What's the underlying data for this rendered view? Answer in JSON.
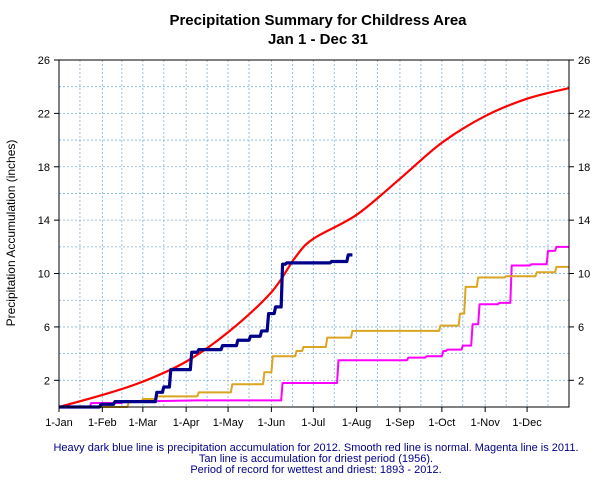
{
  "chart_data": {
    "type": "line",
    "title": "Precipitation Summary for Childress Area",
    "subtitle": "Jan 1 - Dec 31",
    "xlabel": "",
    "ylabel": "Precipitation Accumulation (inches)",
    "x_unit": "day of year",
    "xlim": [
      1,
      366
    ],
    "ylim": [
      0,
      26
    ],
    "y_ticks": [
      2,
      6,
      10,
      14,
      18,
      22,
      26
    ],
    "x_tick_labels": [
      {
        "day": 1,
        "label": "1-Jan"
      },
      {
        "day": 32,
        "label": "1-Feb"
      },
      {
        "day": 61,
        "label": "1-Mar"
      },
      {
        "day": 92,
        "label": "1-Apr"
      },
      {
        "day": 122,
        "label": "1-May"
      },
      {
        "day": 153,
        "label": "1-Jun"
      },
      {
        "day": 183,
        "label": "1-Jul"
      },
      {
        "day": 214,
        "label": "1-Aug"
      },
      {
        "day": 245,
        "label": "1-Sep"
      },
      {
        "day": 275,
        "label": "1-Oct"
      },
      {
        "day": 306,
        "label": "1-Nov"
      },
      {
        "day": 336,
        "label": "1-Dec"
      }
    ],
    "grid": true,
    "grid_x_days": [
      1,
      16,
      32,
      46,
      61,
      76,
      92,
      107,
      122,
      137,
      153,
      168,
      183,
      198,
      214,
      229,
      245,
      260,
      275,
      290,
      306,
      321,
      336,
      351,
      366
    ],
    "grid_y_values": [
      2,
      4,
      6,
      8,
      10,
      12,
      14,
      16,
      18,
      20,
      22,
      24
    ],
    "series": [
      {
        "color": "#ff0000",
        "style": "smooth",
        "x": [
          1,
          32,
          61,
          92,
          122,
          153,
          170,
          183,
          214,
          245,
          275,
          306,
          336,
          366
        ],
        "y": [
          0.0,
          0.9,
          1.9,
          3.4,
          5.6,
          8.6,
          11.2,
          12.6,
          14.4,
          17.1,
          19.8,
          21.8,
          23.1,
          23.9
        ]
      },
      {
        "color": "#ff00ff",
        "style": "steps",
        "x": [
          1,
          23,
          24,
          46,
          47,
          100,
          101,
          160,
          161,
          190,
          191,
          200,
          201,
          250,
          251,
          263,
          264,
          275,
          276,
          278,
          279,
          289,
          290,
          296,
          297,
          301,
          302,
          315,
          316,
          324,
          325,
          338,
          339,
          350,
          351,
          356,
          357,
          366
        ],
        "y": [
          0.0,
          0.0,
          0.3,
          0.3,
          0.4,
          0.5,
          0.5,
          0.5,
          1.8,
          1.8,
          1.8,
          1.8,
          3.5,
          3.5,
          3.7,
          3.7,
          3.8,
          3.8,
          4.2,
          4.2,
          4.3,
          4.3,
          4.6,
          4.6,
          6.2,
          6.2,
          7.7,
          7.7,
          7.8,
          7.8,
          10.6,
          10.6,
          10.7,
          10.7,
          11.7,
          11.7,
          12.0,
          12.0
        ]
      },
      {
        "color": "#daa520",
        "style": "steps",
        "x": [
          1,
          50,
          51,
          60,
          61,
          70,
          71,
          100,
          101,
          124,
          125,
          147,
          148,
          153,
          154,
          170,
          171,
          175,
          176,
          192,
          193,
          210,
          211,
          250,
          251,
          273,
          274,
          287,
          288,
          291,
          292,
          300,
          301,
          320,
          321,
          342,
          343,
          356,
          357,
          366
        ],
        "y": [
          0.0,
          0.0,
          0.4,
          0.4,
          0.6,
          0.6,
          0.8,
          0.8,
          1.1,
          1.1,
          1.7,
          1.7,
          2.6,
          2.6,
          3.8,
          3.8,
          4.2,
          4.2,
          4.5,
          4.5,
          5.2,
          5.2,
          5.7,
          5.7,
          5.7,
          5.7,
          6.1,
          6.1,
          7.0,
          7.0,
          9.0,
          9.0,
          9.7,
          9.7,
          9.8,
          9.8,
          10.1,
          10.1,
          10.5,
          10.5
        ]
      },
      {
        "color": "#00008b",
        "style": "steps",
        "x": [
          1,
          30,
          31,
          40,
          41,
          70,
          71,
          75,
          76,
          80,
          81,
          95,
          96,
          100,
          101,
          117,
          118,
          128,
          129,
          137,
          138,
          145,
          146,
          150,
          151,
          155,
          156,
          160,
          161,
          163,
          164,
          195,
          196,
          200,
          201,
          207,
          208,
          211
        ],
        "y": [
          0.0,
          0.0,
          0.2,
          0.2,
          0.4,
          0.4,
          1.1,
          1.1,
          1.5,
          1.5,
          2.8,
          2.8,
          4.1,
          4.1,
          4.3,
          4.3,
          4.6,
          4.6,
          5.0,
          5.0,
          5.3,
          5.3,
          5.7,
          5.7,
          7.0,
          7.0,
          7.5,
          7.5,
          10.7,
          10.7,
          10.8,
          10.8,
          10.9,
          10.9,
          10.9,
          10.9,
          11.4,
          11.4
        ]
      }
    ]
  },
  "caption": {
    "line1": "Heavy dark blue line is precipitation accumulation for 2012. Smooth red line is normal. Magenta line is 2011.",
    "line2": "Tan line is accumulation for driest period (1956).",
    "line3": "Period of record for wettest and driest: 1893 - 2012."
  }
}
